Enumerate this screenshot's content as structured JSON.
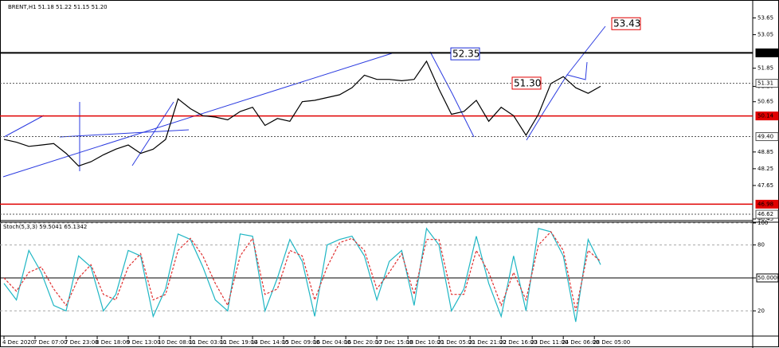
{
  "chart_data": [
    {
      "type": "line",
      "title": "BRENT,H1  51.18 51.22 51.15 51.20",
      "color": "#000000",
      "values": [
        49.3,
        49.2,
        49.05,
        49.1,
        49.15,
        48.8,
        48.35,
        48.5,
        48.75,
        48.95,
        49.1,
        48.8,
        48.95,
        49.3,
        50.75,
        50.4,
        50.15,
        50.1,
        50.0,
        50.3,
        50.45,
        49.8,
        50.05,
        49.95,
        50.65,
        50.7,
        50.8,
        50.9,
        51.15,
        51.6,
        51.45,
        51.45,
        51.4,
        51.45,
        52.1,
        51.1,
        50.2,
        50.3,
        50.7,
        49.95,
        50.45,
        50.15,
        49.45,
        50.2,
        51.3,
        51.55,
        51.15,
        50.95,
        51.2
      ],
      "ylim": [
        46.45,
        54.15
      ],
      "yticks": [
        53.65,
        53.05,
        51.85,
        {
          "value": 51.2,
          "label": "51.20"
        },
        50.65,
        48.85,
        48.25,
        47.65,
        46.45
      ],
      "levels": [
        {
          "value": 52.4,
          "label": "52.40",
          "color": "#000000",
          "dash": false
        },
        {
          "value": 51.31,
          "label": "51.31",
          "color": "#555555",
          "dash": true
        },
        {
          "value": 50.14,
          "label": "50.14",
          "color": "#e00000",
          "dash": false
        },
        {
          "value": 49.4,
          "label": "49.40",
          "color": "#555555",
          "dash": true
        },
        {
          "value": 46.98,
          "label": "46.98",
          "color": "#e00000",
          "dash": false
        },
        {
          "value": 46.62,
          "label": "46.62",
          "color": "#555555",
          "dash": true
        }
      ],
      "annotations": [
        {
          "value": 52.35,
          "label": "52.35",
          "color": "#1a2bd6"
        },
        {
          "value": 51.3,
          "label": "51.30",
          "color": "#e00000"
        },
        {
          "value": 53.43,
          "label": "53.43",
          "color": "#e00000"
        }
      ]
    },
    {
      "type": "line",
      "title": "Stoch(5,3,3) 59.5041 65.1342",
      "series": [
        {
          "color": "#1fb6c4",
          "dash": false,
          "values": [
            45,
            30,
            75,
            55,
            25,
            20,
            70,
            60,
            20,
            35,
            75,
            70,
            15,
            40,
            90,
            85,
            60,
            30,
            20,
            90,
            88,
            20,
            50,
            85,
            65,
            15,
            80,
            85,
            88,
            70,
            30,
            65,
            75,
            25,
            95,
            80,
            20,
            40,
            88,
            45,
            15,
            70,
            20,
            95,
            92,
            70,
            10,
            85,
            62
          ]
        },
        {
          "color": "#e03030",
          "dash": true,
          "values": [
            50,
            38,
            55,
            60,
            40,
            25,
            50,
            62,
            35,
            30,
            60,
            72,
            30,
            35,
            75,
            86,
            70,
            45,
            25,
            70,
            86,
            35,
            40,
            75,
            70,
            30,
            60,
            82,
            86,
            75,
            40,
            55,
            72,
            35,
            85,
            85,
            35,
            35,
            75,
            55,
            25,
            55,
            30,
            80,
            92,
            75,
            20,
            75,
            65
          ]
        }
      ],
      "ylim": [
        0,
        100
      ],
      "yticks": [
        100,
        80,
        {
          "value": 50,
          "label": "50.0000"
        },
        20
      ],
      "xlim": [
        0,
        48
      ],
      "xticks": [
        {
          "value": 0,
          "label": "4 Dec 2020"
        },
        {
          "value": 2.5,
          "label": "7 Dec 07:00"
        },
        {
          "value": 5,
          "label": "7 Dec 23:00"
        },
        {
          "value": 7.5,
          "label": "8 Dec 18:00"
        },
        {
          "value": 10,
          "label": "9 Dec 13:00"
        },
        {
          "value": 12.5,
          "label": "10 Dec 08:00"
        },
        {
          "value": 15,
          "label": "11 Dec 03:00"
        },
        {
          "value": 17.5,
          "label": "11 Dec 19:00"
        },
        {
          "value": 20,
          "label": "14 Dec 14:00"
        },
        {
          "value": 22.5,
          "label": "15 Dec 09:00"
        },
        {
          "value": 25,
          "label": "16 Dec 04:00"
        },
        {
          "value": 27.5,
          "label": "16 Dec 20:00"
        },
        {
          "value": 30,
          "label": "17 Dec 15:00"
        },
        {
          "value": 32.5,
          "label": "18 Dec 10:00"
        },
        {
          "value": 35,
          "label": "21 Dec 05:00"
        },
        {
          "value": 37.5,
          "label": "21 Dec 21:00"
        },
        {
          "value": 40,
          "label": "22 Dec 16:00"
        },
        {
          "value": 42.5,
          "label": "23 Dec 11:00"
        },
        {
          "value": 45,
          "label": "24 Dec 06:00"
        },
        {
          "value": 47.5,
          "label": "28 Dec 05:00"
        }
      ]
    }
  ]
}
